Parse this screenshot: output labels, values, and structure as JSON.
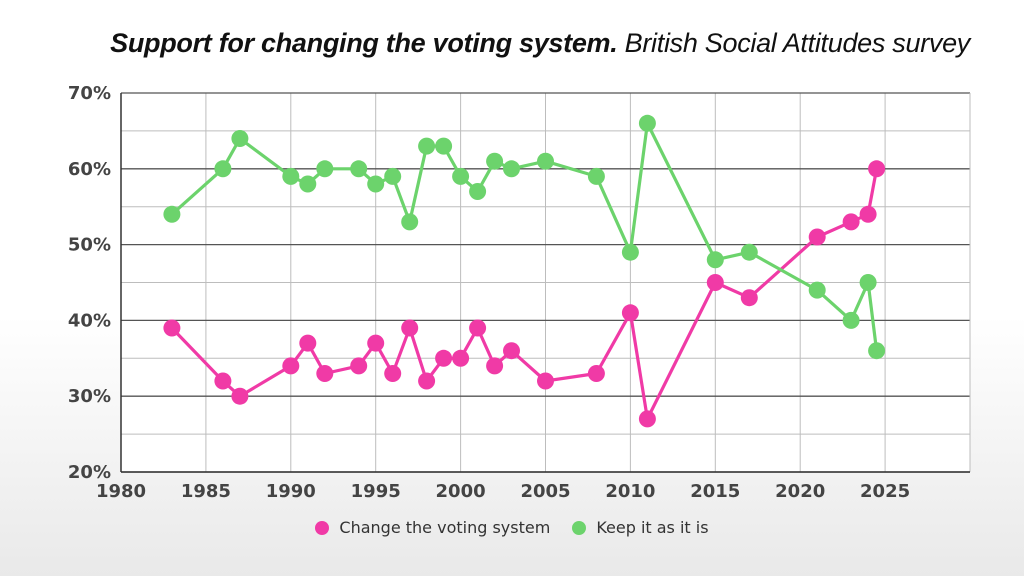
{
  "title": "Support for changing the voting system.",
  "subtitle": "British Social Attitudes survey",
  "colors": {
    "change": "#f03aa6",
    "keep": "#6cd36c",
    "grid": "#555555",
    "minor_grid": "#bdbdbd"
  },
  "chart_data": {
    "type": "line",
    "title": "Support for changing the voting system.",
    "subtitle": "British Social Attitudes survey",
    "xlabel": "",
    "ylabel": "",
    "xlim": [
      1980,
      2030
    ],
    "ylim": [
      20,
      70
    ],
    "x_ticks": [
      "1980",
      "1985",
      "1990",
      "1995",
      "2000",
      "2005",
      "2010",
      "2015",
      "2020",
      "2025"
    ],
    "y_ticks": [
      "20%",
      "30%",
      "40%",
      "50%",
      "60%",
      "70%"
    ],
    "grid": true,
    "legend_position": "bottom-center",
    "series": [
      {
        "name": "Change the voting system",
        "color": "#f03aa6",
        "points": [
          [
            1983,
            39
          ],
          [
            1986,
            32
          ],
          [
            1987,
            30
          ],
          [
            1990,
            34
          ],
          [
            1991,
            37
          ],
          [
            1992,
            33
          ],
          [
            1994,
            34
          ],
          [
            1995,
            37
          ],
          [
            1996,
            33
          ],
          [
            1997,
            39
          ],
          [
            1998,
            32
          ],
          [
            1999,
            35
          ],
          [
            2000,
            35
          ],
          [
            2001,
            39
          ],
          [
            2002,
            34
          ],
          [
            2003,
            36
          ],
          [
            2005,
            32
          ],
          [
            2008,
            33
          ],
          [
            2010,
            41
          ],
          [
            2011,
            27
          ],
          [
            2015,
            45
          ],
          [
            2017,
            43
          ],
          [
            2021,
            51
          ],
          [
            2023,
            53
          ],
          [
            2024,
            54
          ],
          [
            2024.5,
            60
          ]
        ]
      },
      {
        "name": "Keep it as it is",
        "color": "#6cd36c",
        "points": [
          [
            1983,
            54
          ],
          [
            1986,
            60
          ],
          [
            1987,
            64
          ],
          [
            1990,
            59
          ],
          [
            1991,
            58
          ],
          [
            1992,
            60
          ],
          [
            1994,
            60
          ],
          [
            1995,
            58
          ],
          [
            1996,
            59
          ],
          [
            1997,
            53
          ],
          [
            1998,
            63
          ],
          [
            1999,
            63
          ],
          [
            2000,
            59
          ],
          [
            2001,
            57
          ],
          [
            2002,
            61
          ],
          [
            2003,
            60
          ],
          [
            2005,
            61
          ],
          [
            2008,
            59
          ],
          [
            2010,
            49
          ],
          [
            2011,
            66
          ],
          [
            2015,
            48
          ],
          [
            2017,
            49
          ],
          [
            2021,
            44
          ],
          [
            2023,
            40
          ],
          [
            2024,
            45
          ],
          [
            2024.5,
            36
          ]
        ]
      }
    ]
  }
}
